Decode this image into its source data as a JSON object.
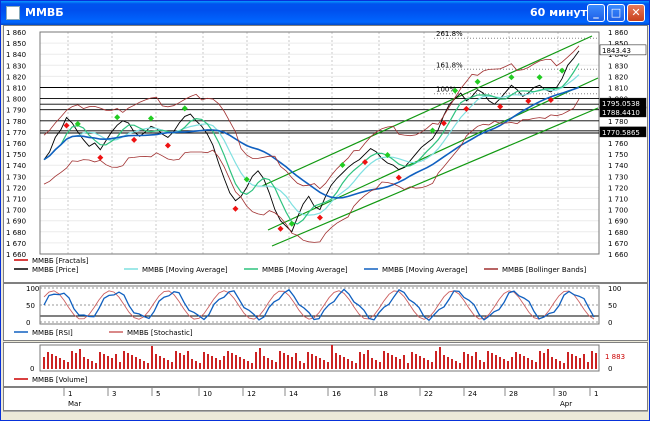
{
  "window": {
    "title": "ММВБ",
    "timeframe": "60 минут",
    "minimize": "_",
    "maximize": "□",
    "close": "✕"
  },
  "price_panel": {
    "y_ticks": [
      "1 860",
      "1 850",
      "1 840",
      "1 830",
      "1 820",
      "1 810",
      "1 800",
      "1 790",
      "1 780",
      "1 770",
      "1 760",
      "1 750",
      "1 740",
      "1 730",
      "1 720",
      "1 710",
      "1 700",
      "1 690",
      "1 680",
      "1 670",
      "1 660"
    ],
    "fib_levels": [
      "261.8%",
      "161.8%",
      "100%"
    ],
    "price_badges": [
      {
        "text": "1843.43",
        "bg": "#ffffff"
      },
      {
        "text": "1795.0538",
        "bg": "#000000"
      },
      {
        "text": "1788.4410",
        "bg": "#000000"
      },
      {
        "text": "1770.5865",
        "bg": "#000000"
      }
    ],
    "legend": [
      {
        "text": "ММВБ [Fractals]",
        "color": "#cc0000"
      },
      {
        "text": "ММВБ [Price]",
        "color": "#000000"
      },
      {
        "text": "ММВБ [Moving Average]",
        "color": "#7fe0e0"
      },
      {
        "text": "ММВБ [Moving Average]",
        "color": "#2ec27e"
      },
      {
        "text": "ММВБ [Moving Average]",
        "color": "#1060c0"
      },
      {
        "text": "ММВБ [Bollinger Bands]",
        "color": "#a03030"
      }
    ]
  },
  "osc_panel": {
    "left_ticks": [
      "100",
      "50",
      "0"
    ],
    "right_ticks": [
      "100",
      "50",
      "0"
    ],
    "legend": [
      {
        "text": "ММВБ [RSI]",
        "color": "#1060c0"
      },
      {
        "text": "ММВБ [Stochastic]",
        "color": "#cc6060"
      }
    ]
  },
  "volume_panel": {
    "left_tick": "0",
    "right_tick": "0",
    "current_value": "1 883",
    "legend": [
      {
        "text": "ММВБ [Volume]",
        "color": "#cc0000"
      }
    ]
  },
  "date_axis": {
    "days": [
      "1",
      "3",
      "5",
      "10",
      "12",
      "14",
      "16",
      "18",
      "22",
      "24",
      "28",
      "30",
      "1"
    ],
    "months": [
      "Mar",
      "Apr"
    ]
  },
  "colors": {
    "up_fractal": "#22cc22",
    "down_fractal": "#ee1111",
    "channel": "#009900",
    "bg": "#ece9d8"
  }
}
